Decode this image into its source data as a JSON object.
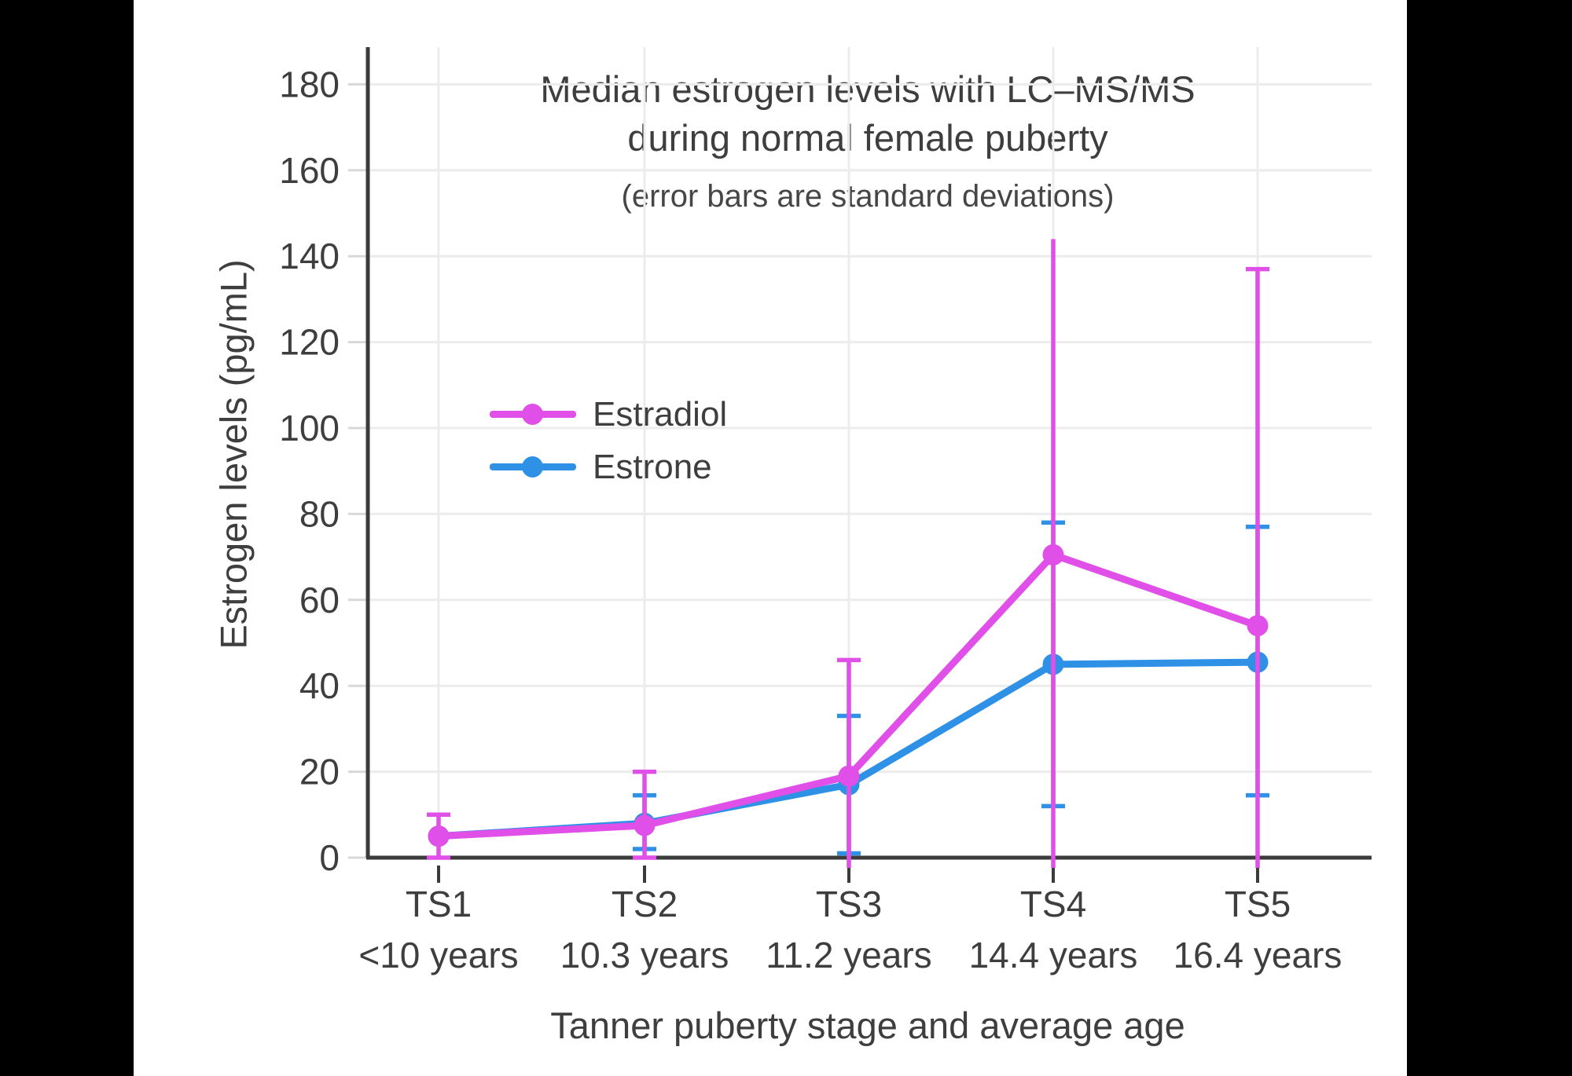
{
  "page": {
    "background": "#000000",
    "canvas_background": "#ffffff"
  },
  "chart_data": {
    "type": "line",
    "title_line1": "Median estrogen levels with LC–MS/MS",
    "title_line2": "during normal female puberty",
    "subtitle": "(error bars are standard deviations)",
    "xlabel": "Tanner puberty stage and average age",
    "ylabel": "Estrogen levels (pg/mL)",
    "categories": [
      "TS1",
      "TS2",
      "TS3",
      "TS4",
      "TS5"
    ],
    "category_ages": [
      "<10 years",
      "10.3 years",
      "11.2 years",
      "14.4 years",
      "16.4 years"
    ],
    "yticks": [
      0,
      20,
      40,
      60,
      80,
      100,
      120,
      140,
      160,
      180
    ],
    "ylim": [
      -2.4,
      189
    ],
    "grid": true,
    "legend_position": "inside-left",
    "legend_order": [
      "Estradiol",
      "Estrone"
    ],
    "colors": {
      "estradiol": "#E04FE8",
      "estrone": "#2E91E5",
      "axis": "#3B3B3B",
      "gridline": "#ECECEC",
      "text": "#3E3E3E",
      "y_tick": "#D8D8D8"
    },
    "series": [
      {
        "name": "Estrone",
        "color": "#2E91E5",
        "values": [
          5,
          8,
          17,
          45,
          45.5
        ],
        "err_top": [
          null,
          14.5,
          33,
          78,
          77
        ],
        "err_bottom": [
          null,
          2,
          1,
          12,
          14.5
        ]
      },
      {
        "name": "Estradiol",
        "color": "#E04FE8",
        "values": [
          5,
          7.5,
          19,
          70.5,
          54
        ],
        "err_top": [
          10,
          20,
          46,
          144,
          137
        ],
        "err_bottom": [
          0,
          0,
          null,
          null,
          null
        ],
        "err_top_cap": [
          true,
          true,
          true,
          false,
          true
        ],
        "note_err_bottom_null": "whisker clipped below y=0 axis, no cap drawn"
      }
    ]
  }
}
